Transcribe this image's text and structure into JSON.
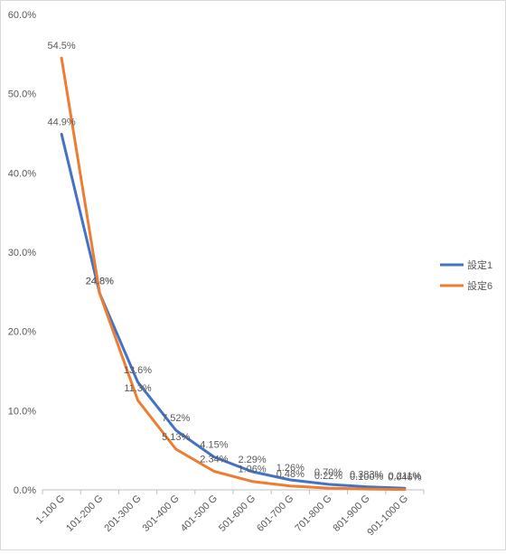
{
  "chart_data": {
    "type": "line",
    "title": "",
    "xlabel": "",
    "ylabel": "",
    "ylim": [
      0,
      60
    ],
    "yticks": [
      0,
      10,
      20,
      30,
      40,
      50,
      60
    ],
    "ytick_labels": [
      "0.0%",
      "10.0%",
      "20.0%",
      "30.0%",
      "40.0%",
      "50.0%",
      "60.0%"
    ],
    "grid": false,
    "legend_position": "right",
    "categories": [
      "1-100 G",
      "101-200 G",
      "201-300 G",
      "301-400 G",
      "401-500 G",
      "501-600 G",
      "601-700 G",
      "701-800 G",
      "801-900 G",
      "901-1000 G"
    ],
    "series": [
      {
        "name": "設定1",
        "color": "#4472C4",
        "values": [
          44.9,
          24.8,
          13.6,
          7.52,
          4.15,
          2.29,
          1.26,
          0.7,
          0.383,
          0.211
        ],
        "labels": [
          "44.9%",
          "24.8%",
          "13.6%",
          "7.52%",
          "4.15%",
          "2.29%",
          "1.26%",
          "0.70%",
          "0.383%",
          "0.211%"
        ]
      },
      {
        "name": "設定6",
        "color": "#ED7D31",
        "values": [
          54.5,
          24.8,
          11.3,
          5.13,
          2.34,
          1.06,
          0.48,
          0.22,
          0.1,
          0.046
        ],
        "labels": [
          "54.5%",
          "24.8%",
          "11.3%",
          "5.13%",
          "2.34%",
          "1.06%",
          "0.48%",
          "0.22%",
          "0.100%",
          "0.046%"
        ]
      }
    ]
  }
}
